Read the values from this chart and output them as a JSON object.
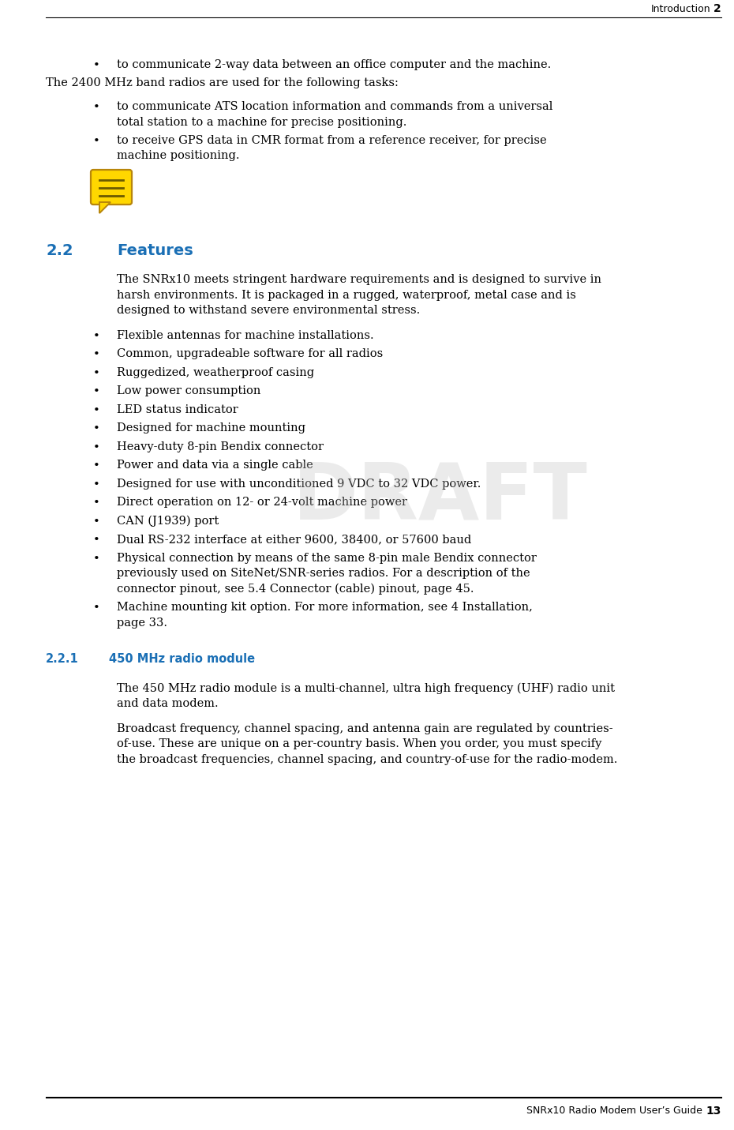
{
  "page_bg": "#ffffff",
  "header_text": "Introduction",
  "header_chapter": "2",
  "footer_text": "SNRx10 Radio Modem User’s Guide",
  "footer_page": "13",
  "header_line_color": "#000000",
  "footer_line_color": "#000000",
  "section_color": "#1a6fb5",
  "draft_color": "#c0c0c0",
  "draft_text": "DRAFT",
  "body_color": "#000000",
  "content": [
    {
      "type": "bullet",
      "text": "to communicate 2-way data between an office computer and the machine."
    },
    {
      "type": "para",
      "text": "The 2400 MHz band radios are used for the following tasks:"
    },
    {
      "type": "bullet",
      "text": "to communicate ATS location information and commands from a universal\ntotal station to a machine for precise positioning."
    },
    {
      "type": "bullet",
      "text": "to receive GPS data in CMR format from a reference receiver, for precise\nmachine positioning."
    },
    {
      "type": "icon"
    },
    {
      "type": "section",
      "num": "2.2",
      "title": "Features"
    },
    {
      "type": "para_indent",
      "text": "The SNRx10 meets stringent hardware requirements and is designed to survive in\nharsh environments. It is packaged in a rugged, waterproof, metal case and is\ndesigned to withstand severe environmental stress."
    },
    {
      "type": "bullet",
      "text": "Flexible antennas for machine installations."
    },
    {
      "type": "bullet",
      "text": "Common, upgradeable software for all radios"
    },
    {
      "type": "bullet",
      "text": "Ruggedized, weatherproof casing"
    },
    {
      "type": "bullet",
      "text": "Low power consumption"
    },
    {
      "type": "bullet",
      "text": "LED status indicator"
    },
    {
      "type": "bullet",
      "text": "Designed for machine mounting"
    },
    {
      "type": "bullet",
      "text": "Heavy-duty 8-pin Bendix connector"
    },
    {
      "type": "bullet",
      "text": "Power and data via a single cable"
    },
    {
      "type": "bullet",
      "text": "Designed for use with unconditioned 9 VDC to 32 VDC power."
    },
    {
      "type": "bullet",
      "text": "Direct operation on 12- or 24-volt machine power"
    },
    {
      "type": "bullet",
      "text": "CAN (J1939) port"
    },
    {
      "type": "bullet",
      "text": "Dual RS-232 interface at either 9600, 38400, or 57600 baud"
    },
    {
      "type": "bullet",
      "text": "Physical connection by means of the same 8-pin male Bendix connector\npreviously used on SiteNet/SNR-series radios. For a description of the\nconnector pinout, see 5.4 Connector (cable) pinout, page 45."
    },
    {
      "type": "bullet",
      "text": "Machine mounting kit option. For more information, see 4 Installation,\npage 33."
    },
    {
      "type": "subsection",
      "num": "2.2.1",
      "title": "450 MHz radio module"
    },
    {
      "type": "para_indent",
      "text": "The 450 MHz radio module is a multi-channel, ultra high frequency (UHF) radio unit\nand data modem."
    },
    {
      "type": "para_indent",
      "text": "Broadcast frequency, channel spacing, and antenna gain are regulated by countries-\nof-use. These are unique on a per-country basis. When you order, you must specify\nthe broadcast frequencies, channel spacing, and country-of-use for the radio-modem."
    }
  ]
}
